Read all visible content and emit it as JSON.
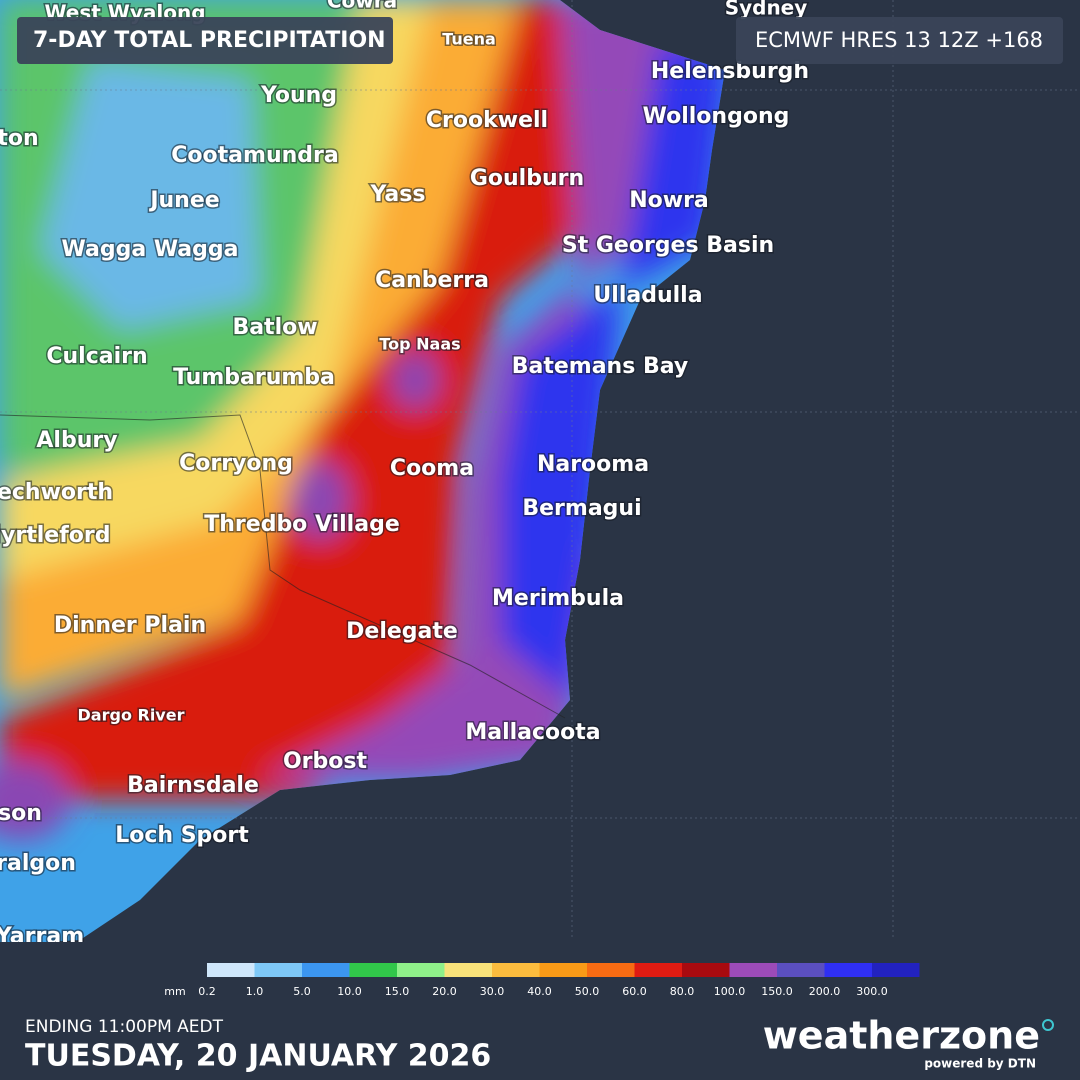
{
  "header": {
    "title": "7-DAY TOTAL PRECIPITATION",
    "model": "ECMWF HRES 13 12Z +168"
  },
  "places": [
    "West Wyalong",
    "Cowra",
    "Sydney",
    "Tuena",
    "Helensburgh",
    "Young",
    "Crookwell",
    "Wollongong",
    "ton",
    "Cootamundra",
    "Junee",
    "Yass",
    "Goulburn",
    "Nowra",
    "Wagga Wagga",
    "St Georges Basin",
    "Canberra",
    "Ulladulla",
    "Batlow",
    "Top Naas",
    "Culcairn",
    "Tumbarumba",
    "Batemans Bay",
    "Albury",
    "Corryong",
    "Cooma",
    "Narooma",
    "echworth",
    "Bermagui",
    "Thredbo Village",
    "lyrtleford",
    "Merimbula",
    "Dinner Plain",
    "Delegate",
    "Dargo River",
    "Mallacoota",
    "Orbost",
    "Bairnsdale",
    "son",
    "Loch Sport",
    "ralgon",
    "Yarram"
  ],
  "legend": {
    "unit": "mm",
    "labels": [
      "0.2",
      "1.0",
      "5.0",
      "10.0",
      "15.0",
      "20.0",
      "30.0",
      "40.0",
      "50.0",
      "60.0",
      "80.0",
      "100.0",
      "150.0",
      "200.0",
      "300.0"
    ],
    "colors": [
      "#cfe7fb",
      "#7ec8f7",
      "#3c96f0",
      "#31c64a",
      "#8ff08a",
      "#f8e27a",
      "#fbbc3e",
      "#f99a17",
      "#f76b13",
      "#e01b12",
      "#a80a0f",
      "#9c4bb8",
      "#5b4fc0",
      "#2f2ff3",
      "#2222c0"
    ]
  },
  "footer": {
    "ending": "ENDING 11:00PM AEDT",
    "date": "TUESDAY, 20 JANUARY 2026",
    "logo": "weatherzone",
    "powered": "powered by DTN"
  }
}
